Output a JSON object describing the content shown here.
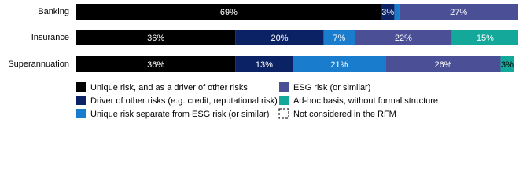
{
  "chart_data": {
    "type": "stacked-bar-horizontal",
    "categories": [
      "Banking",
      "Insurance",
      "Superannuation"
    ],
    "xlim": [
      0,
      100
    ],
    "series": [
      {
        "name": "Unique risk, and as a driver of other risks",
        "color": "#000000",
        "values": [
          69,
          36,
          36
        ],
        "value_labels": [
          "69%",
          "36%",
          "36%"
        ]
      },
      {
        "name": "Driver of other risks (e.g. credit, reputational risk)",
        "color": "#0b2265",
        "values": [
          3,
          20,
          13
        ],
        "value_labels": [
          "3%",
          "20%",
          "13%"
        ]
      },
      {
        "name": "Unique risk separate from ESG risk (or similar)",
        "color": "#1a7ccc",
        "values": [
          1,
          7,
          21
        ],
        "value_labels": [
          null,
          "7%",
          "21%"
        ]
      },
      {
        "name": "ESG risk (or similar)",
        "color": "#4b4f96",
        "values": [
          27,
          22,
          26
        ],
        "value_labels": [
          "27%",
          "22%",
          "26%"
        ]
      },
      {
        "name": "Ad-hoc basis, without formal structure",
        "color": "#14a89b",
        "values": [
          0,
          15,
          3
        ],
        "value_labels": [
          null,
          "15%",
          "3%"
        ]
      },
      {
        "name": "Not considered in the RFM",
        "color": "#ffffff",
        "values": [
          0,
          0,
          0
        ],
        "value_labels": [
          null,
          null,
          null
        ]
      }
    ]
  }
}
